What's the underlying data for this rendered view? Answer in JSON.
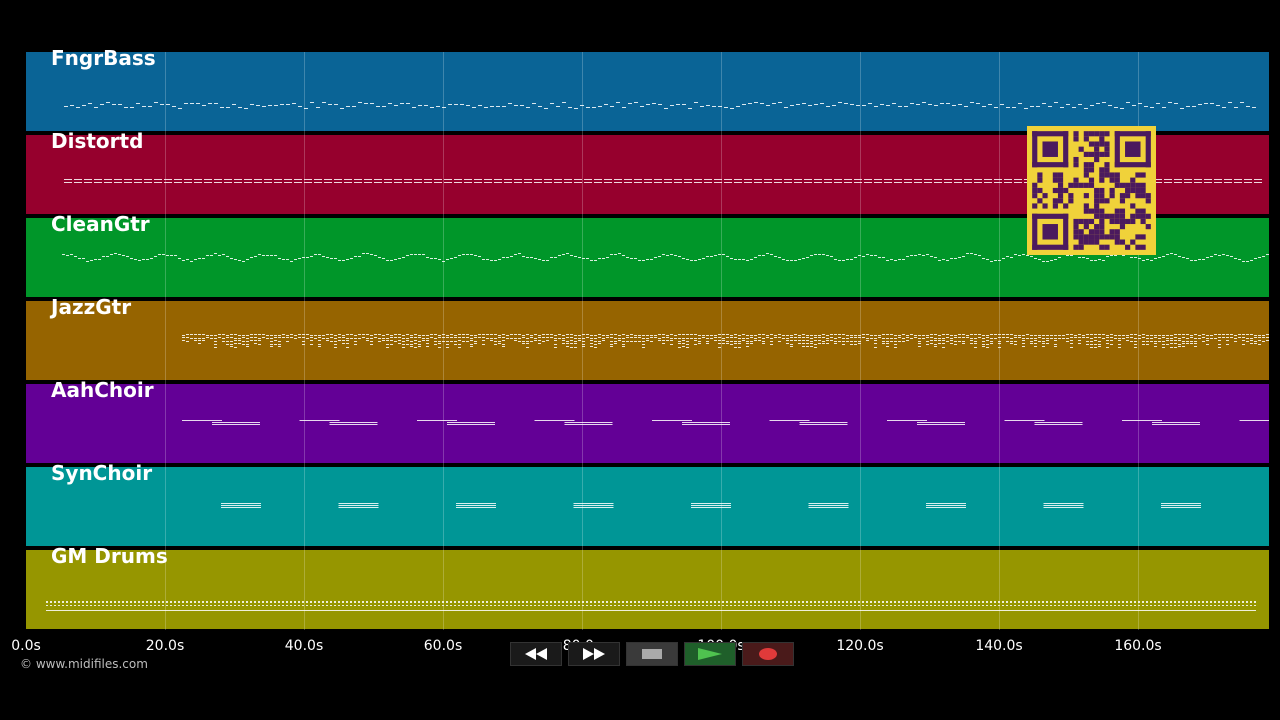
{
  "tracks": [
    {
      "name": "FngrBass",
      "color": "#0a6496",
      "style": "bass"
    },
    {
      "name": "Distortd",
      "color": "#96002d",
      "style": "flat"
    },
    {
      "name": "CleanGtr",
      "color": "#009629",
      "style": "wave"
    },
    {
      "name": "JazzGtr",
      "color": "#966400",
      "style": "block"
    },
    {
      "name": "AahChoir",
      "color": "#630096",
      "style": "choir"
    },
    {
      "name": "SynChoir",
      "color": "#009696",
      "style": "synchoir"
    },
    {
      "name": "GM Drums",
      "color": "#969600",
      "style": "drums"
    }
  ],
  "timeline": {
    "ticks": [
      "0.0s",
      "20.0s",
      "40.0s",
      "60.0s",
      "80.0s",
      "100.0s",
      "120.0s",
      "140.0s",
      "160.0s"
    ]
  },
  "controls": {
    "rewind_icon": "rewind-icon",
    "forward_icon": "fast-forward-icon",
    "stop_icon": "stop-icon",
    "play_icon": "play-icon",
    "record_icon": "record-icon"
  },
  "copyright": "© www.midifiles.com",
  "qr_code": {
    "color": "#f0d23a",
    "module_color": "#4b1a5e"
  }
}
